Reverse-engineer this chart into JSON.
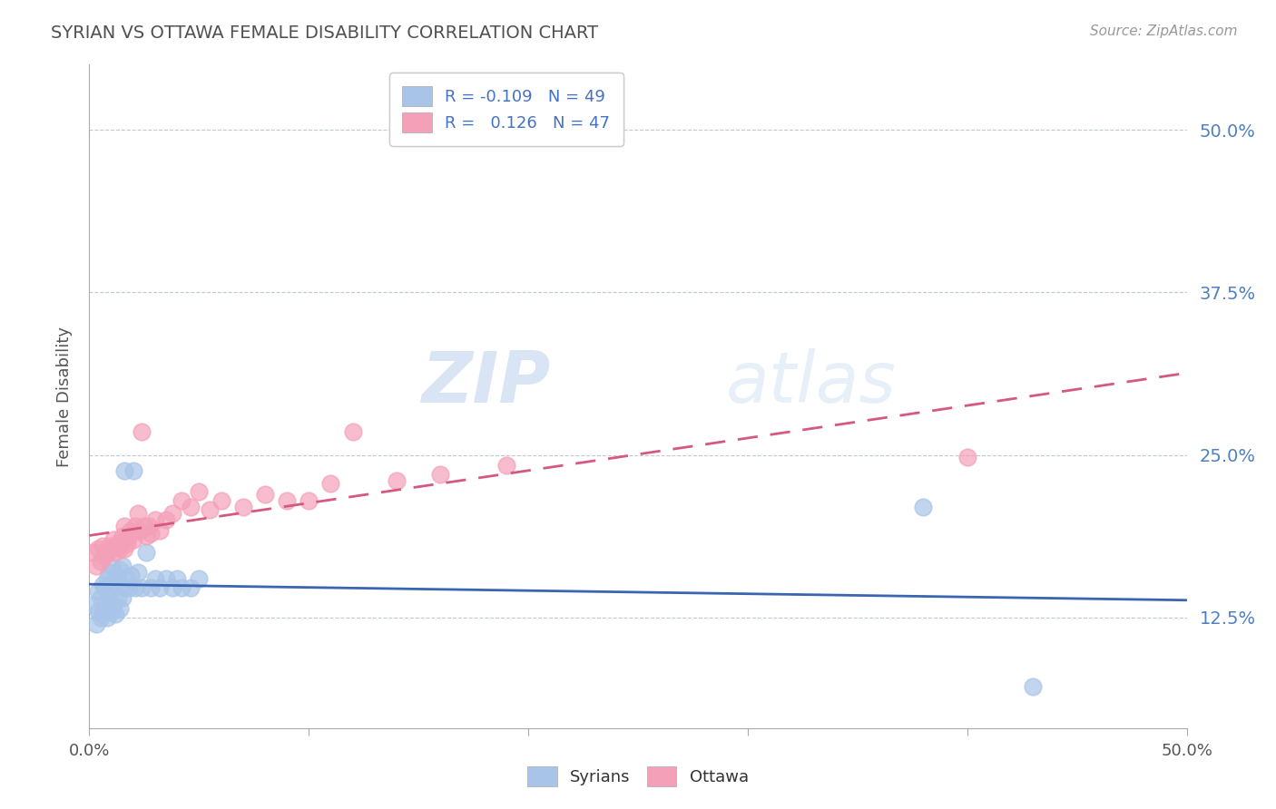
{
  "title": "SYRIAN VS OTTAWA FEMALE DISABILITY CORRELATION CHART",
  "source": "Source: ZipAtlas.com",
  "ylabel": "Female Disability",
  "ytick_labels": [
    "12.5%",
    "25.0%",
    "37.5%",
    "50.0%"
  ],
  "ytick_values": [
    0.125,
    0.25,
    0.375,
    0.5
  ],
  "xlim": [
    0.0,
    0.5
  ],
  "ylim": [
    0.04,
    0.55
  ],
  "syrians_R": -0.109,
  "syrians_N": 49,
  "ottawa_R": 0.126,
  "ottawa_N": 47,
  "syrians_color": "#a8c4e8",
  "ottawa_color": "#f4a0b8",
  "syrians_line_color": "#3a65b0",
  "ottawa_line_color": "#d45880",
  "background_color": "#ffffff",
  "grid_color": "#c0c8d8",
  "title_color": "#505050",
  "watermark_zip": "ZIP",
  "watermark_atlas": "atlas",
  "legend_label_syrians": "Syrians",
  "legend_label_ottawa": "Ottawa",
  "syrians_x": [
    0.002,
    0.003,
    0.004,
    0.004,
    0.005,
    0.005,
    0.006,
    0.006,
    0.007,
    0.007,
    0.008,
    0.008,
    0.008,
    0.009,
    0.009,
    0.01,
    0.01,
    0.01,
    0.011,
    0.011,
    0.012,
    0.012,
    0.013,
    0.013,
    0.014,
    0.014,
    0.015,
    0.015,
    0.016,
    0.016,
    0.017,
    0.018,
    0.019,
    0.02,
    0.021,
    0.022,
    0.024,
    0.026,
    0.028,
    0.03,
    0.032,
    0.035,
    0.038,
    0.04,
    0.042,
    0.046,
    0.05,
    0.38,
    0.43
  ],
  "syrians_y": [
    0.135,
    0.12,
    0.13,
    0.145,
    0.125,
    0.14,
    0.128,
    0.15,
    0.132,
    0.148,
    0.138,
    0.155,
    0.125,
    0.142,
    0.16,
    0.13,
    0.148,
    0.165,
    0.135,
    0.152,
    0.128,
    0.158,
    0.14,
    0.155,
    0.132,
    0.162,
    0.14,
    0.165,
    0.148,
    0.238,
    0.155,
    0.148,
    0.158,
    0.238,
    0.148,
    0.16,
    0.148,
    0.175,
    0.148,
    0.155,
    0.148,
    0.155,
    0.148,
    0.155,
    0.148,
    0.148,
    0.155,
    0.21,
    0.072
  ],
  "ottawa_x": [
    0.002,
    0.003,
    0.004,
    0.005,
    0.006,
    0.007,
    0.008,
    0.009,
    0.01,
    0.011,
    0.012,
    0.013,
    0.014,
    0.015,
    0.016,
    0.016,
    0.017,
    0.018,
    0.019,
    0.02,
    0.021,
    0.022,
    0.023,
    0.024,
    0.025,
    0.026,
    0.027,
    0.028,
    0.03,
    0.032,
    0.035,
    0.038,
    0.042,
    0.046,
    0.05,
    0.055,
    0.06,
    0.07,
    0.08,
    0.09,
    0.1,
    0.11,
    0.12,
    0.14,
    0.16,
    0.19,
    0.4
  ],
  "ottawa_y": [
    0.175,
    0.165,
    0.178,
    0.168,
    0.18,
    0.172,
    0.175,
    0.18,
    0.178,
    0.185,
    0.175,
    0.182,
    0.178,
    0.188,
    0.178,
    0.195,
    0.182,
    0.188,
    0.192,
    0.185,
    0.195,
    0.205,
    0.192,
    0.268,
    0.195,
    0.188,
    0.195,
    0.19,
    0.2,
    0.192,
    0.2,
    0.205,
    0.215,
    0.21,
    0.222,
    0.208,
    0.215,
    0.21,
    0.22,
    0.215,
    0.215,
    0.228,
    0.268,
    0.23,
    0.235,
    0.242,
    0.248
  ]
}
